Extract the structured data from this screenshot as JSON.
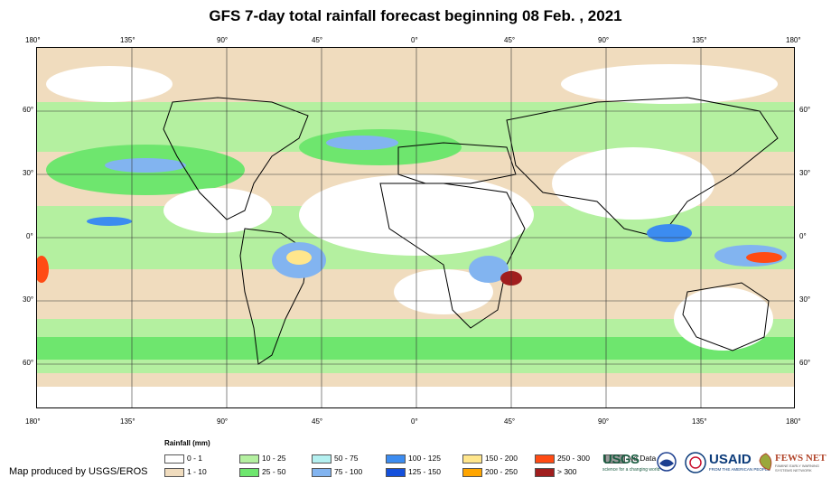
{
  "title": "GFS 7-day total rainfall forecast beginning 08 Feb. , 2021",
  "longitude_labels": [
    "180°",
    "135°",
    "90°",
    "45°",
    "0°",
    "45°",
    "90°",
    "135°",
    "180°"
  ],
  "latitude_labels": [
    "60°",
    "30°",
    "0°",
    "30°",
    "60°"
  ],
  "legend": {
    "title": "Rainfall (mm)",
    "items": [
      {
        "label": "0 - 1",
        "color": "#ffffff"
      },
      {
        "label": "1 - 10",
        "color": "#f0dcbe"
      },
      {
        "label": "10 - 25",
        "color": "#b4f0a0"
      },
      {
        "label": "25 - 50",
        "color": "#6ee66e"
      },
      {
        "label": "50 - 75",
        "color": "#b4f0f0"
      },
      {
        "label": "75 - 100",
        "color": "#82b4f0"
      },
      {
        "label": "100 - 125",
        "color": "#3c8cf0"
      },
      {
        "label": "125 - 150",
        "color": "#1450dc"
      },
      {
        "label": "150 - 200",
        "color": "#ffe68c"
      },
      {
        "label": "200 - 250",
        "color": "#ffa500"
      },
      {
        "label": "250 - 300",
        "color": "#ff4b14"
      },
      {
        "label": "> 300",
        "color": "#a01e1e"
      },
      {
        "label": "No Data",
        "color": "#999999"
      }
    ]
  },
  "credit": "Map produced by USGS/EROS",
  "logos": {
    "usgs": {
      "name": "USGS",
      "tagline": "science for a changing world"
    },
    "usaid": {
      "name": "USAID",
      "tagline": "FROM THE AMERICAN PEOPLE"
    },
    "fews": {
      "name": "FEWS NET",
      "tagline": "FAMINE EARLY WARNING SYSTEMS NETWORK"
    }
  }
}
